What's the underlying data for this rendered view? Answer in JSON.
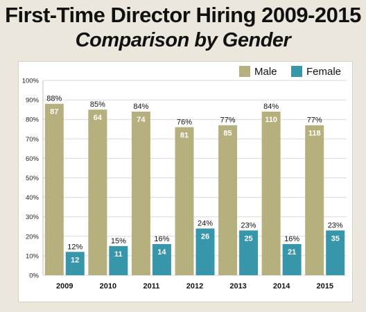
{
  "title_line1": "First-Time Director Hiring 2009-2015",
  "title_line2": "Comparison by Gender",
  "chart_data": {
    "type": "bar",
    "categories": [
      "2009",
      "2010",
      "2011",
      "2012",
      "2013",
      "2014",
      "2015"
    ],
    "series": [
      {
        "name": "Male",
        "color": "#b5b07d",
        "values": [
          88,
          85,
          84,
          76,
          77,
          84,
          77
        ],
        "value_labels": [
          "88%",
          "85%",
          "84%",
          "76%",
          "77%",
          "84%",
          "77%"
        ],
        "count_labels": [
          "87",
          "64",
          "74",
          "81",
          "85",
          "110",
          "118"
        ]
      },
      {
        "name": "Female",
        "color": "#3896ab",
        "values": [
          12,
          15,
          16,
          24,
          23,
          16,
          23
        ],
        "value_labels": [
          "12%",
          "15%",
          "16%",
          "24%",
          "23%",
          "16%",
          "23%"
        ],
        "count_labels": [
          "12",
          "11",
          "14",
          "26",
          "25",
          "21",
          "35"
        ]
      }
    ],
    "y_ticks": [
      "0%",
      "10%",
      "20%",
      "30%",
      "40%",
      "50%",
      "60%",
      "70%",
      "80%",
      "90%",
      "100%"
    ],
    "ylim": [
      0,
      100
    ],
    "grid": true,
    "legend": "top-right",
    "xlabel": "",
    "ylabel": ""
  }
}
